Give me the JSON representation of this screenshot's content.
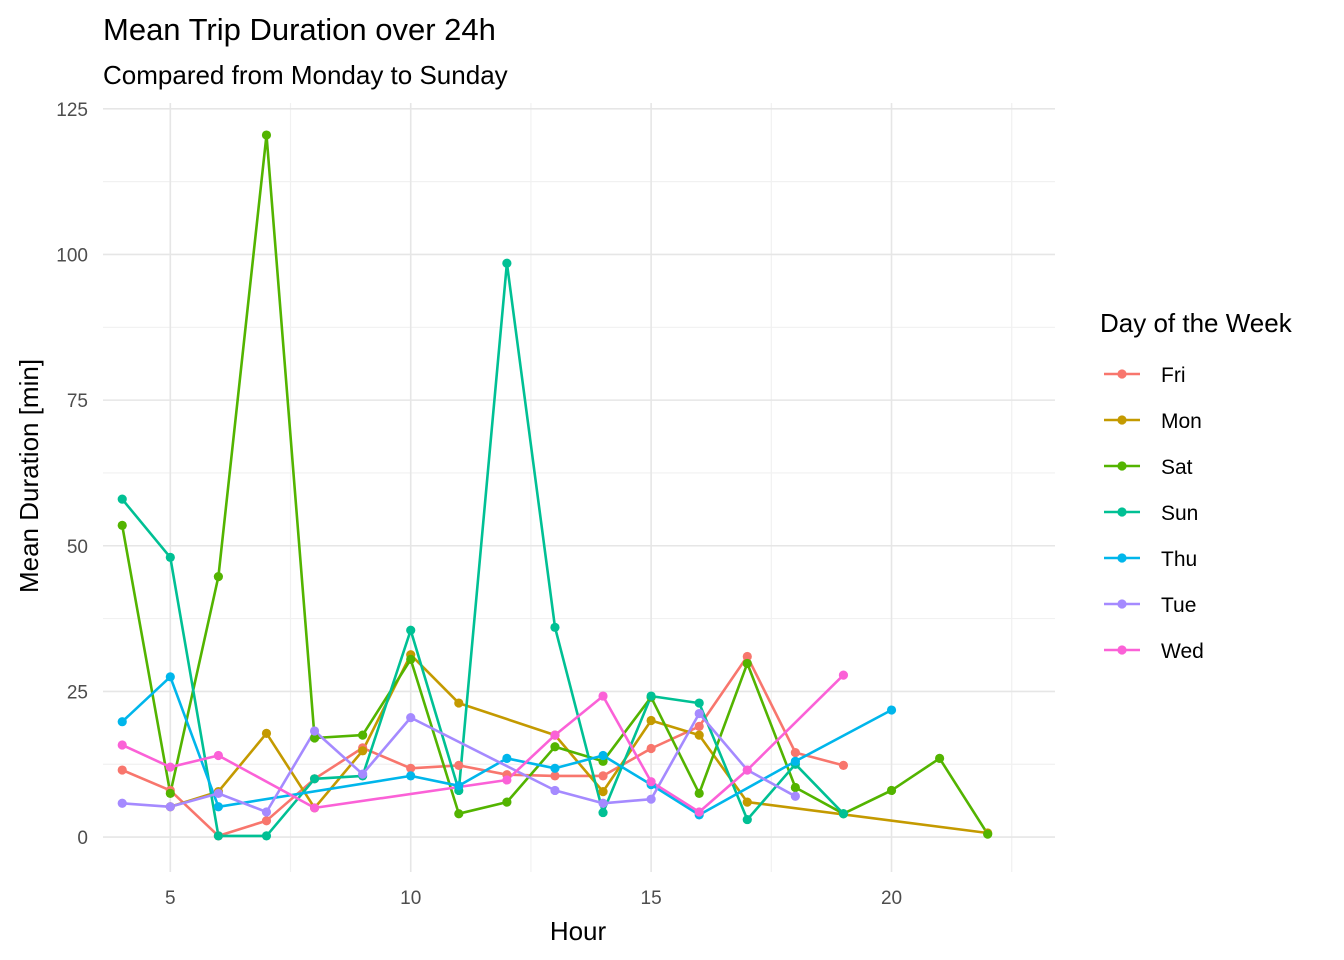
{
  "chart_data": {
    "type": "line",
    "title": "Mean Trip Duration over 24h",
    "subtitle": "Compared from Monday to Sunday",
    "xlabel": "Hour",
    "ylabel": "Mean Duration [min]",
    "xlim": [
      3.6,
      23.4
    ],
    "ylim": [
      -6,
      126
    ],
    "xticks": [
      5,
      10,
      15,
      20
    ],
    "yticks": [
      0,
      25,
      50,
      75,
      100,
      125
    ],
    "grid": true,
    "legend": {
      "title": "Day of the Week",
      "position": "right"
    },
    "series": [
      {
        "name": "Fri",
        "color": "#F8766D",
        "points": [
          [
            4,
            11.5
          ],
          [
            5,
            8
          ],
          [
            6,
            0.2
          ],
          [
            7,
            2.8
          ],
          [
            8,
            10
          ],
          [
            9,
            15.3
          ],
          [
            10,
            11.8
          ],
          [
            11,
            12.3
          ],
          [
            12,
            10.7
          ],
          [
            13,
            10.5
          ],
          [
            14,
            10.5
          ],
          [
            15,
            15.2
          ],
          [
            16,
            19
          ],
          [
            17,
            31
          ],
          [
            18,
            14.5
          ],
          [
            19,
            12.3
          ]
        ]
      },
      {
        "name": "Mon",
        "color": "#C49A00",
        "points": [
          [
            5,
            5.2
          ],
          [
            6,
            7.8
          ],
          [
            7,
            17.8
          ],
          [
            8,
            5
          ],
          [
            9,
            14.8
          ],
          [
            10,
            31.3
          ],
          [
            11,
            23
          ],
          [
            13,
            17.5
          ],
          [
            14,
            7.8
          ],
          [
            15,
            20
          ],
          [
            16,
            17.5
          ],
          [
            17,
            6
          ],
          [
            22,
            0.7
          ]
        ]
      },
      {
        "name": "Sat",
        "color": "#53B400",
        "points": [
          [
            4,
            53.5
          ],
          [
            5,
            7.5
          ],
          [
            6,
            44.7
          ],
          [
            7,
            120.5
          ],
          [
            8,
            17
          ],
          [
            9,
            17.5
          ],
          [
            10,
            30.5
          ],
          [
            11,
            4
          ],
          [
            12,
            6
          ],
          [
            13,
            15.5
          ],
          [
            14,
            13
          ],
          [
            15,
            24
          ],
          [
            16,
            7.5
          ],
          [
            17,
            29.8
          ],
          [
            18,
            8.5
          ],
          [
            19,
            4
          ],
          [
            20,
            8
          ],
          [
            21,
            13.5
          ],
          [
            22,
            0.5
          ]
        ]
      },
      {
        "name": "Sun",
        "color": "#00C094",
        "points": [
          [
            4,
            58
          ],
          [
            5,
            48
          ],
          [
            6,
            0.2
          ],
          [
            7,
            0.2
          ],
          [
            8,
            10
          ],
          [
            9,
            10.5
          ],
          [
            10,
            35.5
          ],
          [
            11,
            8
          ],
          [
            12,
            98.5
          ],
          [
            13,
            36
          ],
          [
            14,
            4.2
          ],
          [
            15,
            24.2
          ],
          [
            16,
            23
          ],
          [
            17,
            3
          ],
          [
            18,
            12.5
          ],
          [
            19,
            4
          ]
        ]
      },
      {
        "name": "Thu",
        "color": "#00B6EB",
        "points": [
          [
            4,
            19.8
          ],
          [
            5,
            27.5
          ],
          [
            6,
            5.2
          ],
          [
            10,
            10.5
          ],
          [
            11,
            8.8
          ],
          [
            12,
            13.5
          ],
          [
            13,
            11.8
          ],
          [
            14,
            14
          ],
          [
            15,
            9
          ],
          [
            16,
            3.8
          ],
          [
            18,
            13
          ],
          [
            20,
            21.8
          ]
        ]
      },
      {
        "name": "Tue",
        "color": "#A58AFF",
        "points": [
          [
            4,
            5.8
          ],
          [
            5,
            5.2
          ],
          [
            6,
            7.5
          ],
          [
            7,
            4.3
          ],
          [
            8,
            18.2
          ],
          [
            9,
            10.8
          ],
          [
            10,
            20.5
          ],
          [
            13,
            8
          ],
          [
            14,
            5.8
          ],
          [
            15,
            6.5
          ],
          [
            16,
            21.2
          ],
          [
            17,
            11.5
          ],
          [
            18,
            7
          ]
        ]
      },
      {
        "name": "Wed",
        "color": "#FB61D7",
        "points": [
          [
            4,
            15.8
          ],
          [
            5,
            12
          ],
          [
            6,
            14
          ],
          [
            8,
            5
          ],
          [
            12,
            9.8
          ],
          [
            13,
            17.5
          ],
          [
            14,
            24.2
          ],
          [
            15,
            9.5
          ],
          [
            16,
            4.3
          ],
          [
            17,
            11.5
          ],
          [
            19,
            27.8
          ]
        ]
      }
    ]
  }
}
